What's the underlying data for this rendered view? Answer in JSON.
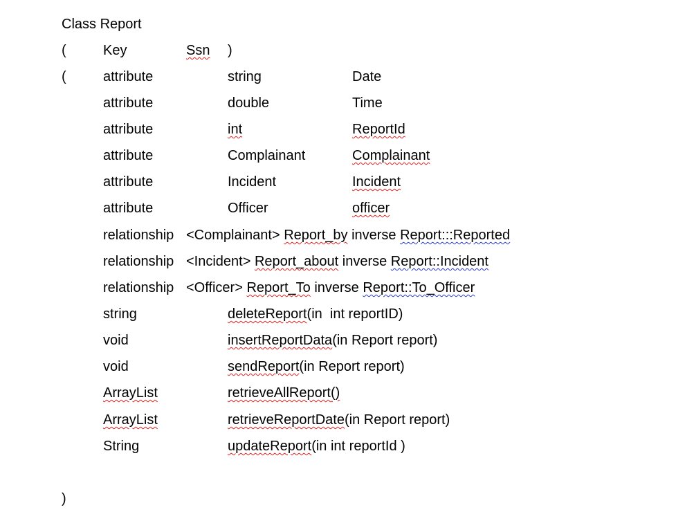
{
  "document": {
    "title": "Class Report",
    "key_line": {
      "open": "(",
      "key_label": "Key",
      "key_value": "Ssn",
      "close": ")"
    },
    "attr_open": "(",
    "attributes": [
      {
        "kind": "attribute",
        "type": "string",
        "name": "Date"
      },
      {
        "kind": "attribute",
        "type": "double",
        "name": "Time"
      },
      {
        "kind": "attribute",
        "type": "int",
        "name": "ReportId"
      },
      {
        "kind": "attribute",
        "type": "Complainant",
        "name": "Complainant"
      },
      {
        "kind": "attribute",
        "type": "Incident",
        "name": "Incident"
      },
      {
        "kind": "attribute",
        "type": "Officer",
        "name": "officer"
      }
    ],
    "relationships": [
      {
        "kind": "relationship",
        "target": "<Complainant>",
        "name": "Report_by",
        "inverse_kw": "inverse",
        "inverse": "Report:::Reported"
      },
      {
        "kind": "relationship",
        "target": "<Incident>",
        "name": "Report_about",
        "inverse_kw": "inverse",
        "inverse": "Report::Incident"
      },
      {
        "kind": "relationship",
        "target": "<Officer>",
        "name": "Report_To",
        "inverse_kw": "inverse",
        "inverse": "Report::To_Officer"
      }
    ],
    "operations": [
      {
        "return_type": "string",
        "name": "deleteReport",
        "params": "(in  int reportID)"
      },
      {
        "return_type": "void",
        "name": "insertReportData",
        "params": "(in Report report)"
      },
      {
        "return_type": "void",
        "name": "sendReport",
        "params": "(in Report report)"
      },
      {
        "return_type": "ArrayList",
        "name": "retrieveAllReport",
        "params": "()"
      },
      {
        "return_type": "ArrayList",
        "name": "retrieveReportDate",
        "params": "(in Report report)"
      },
      {
        "return_type": "String",
        "name": "updateReport",
        "params": "(in int reportId )"
      }
    ],
    "close": ")"
  }
}
